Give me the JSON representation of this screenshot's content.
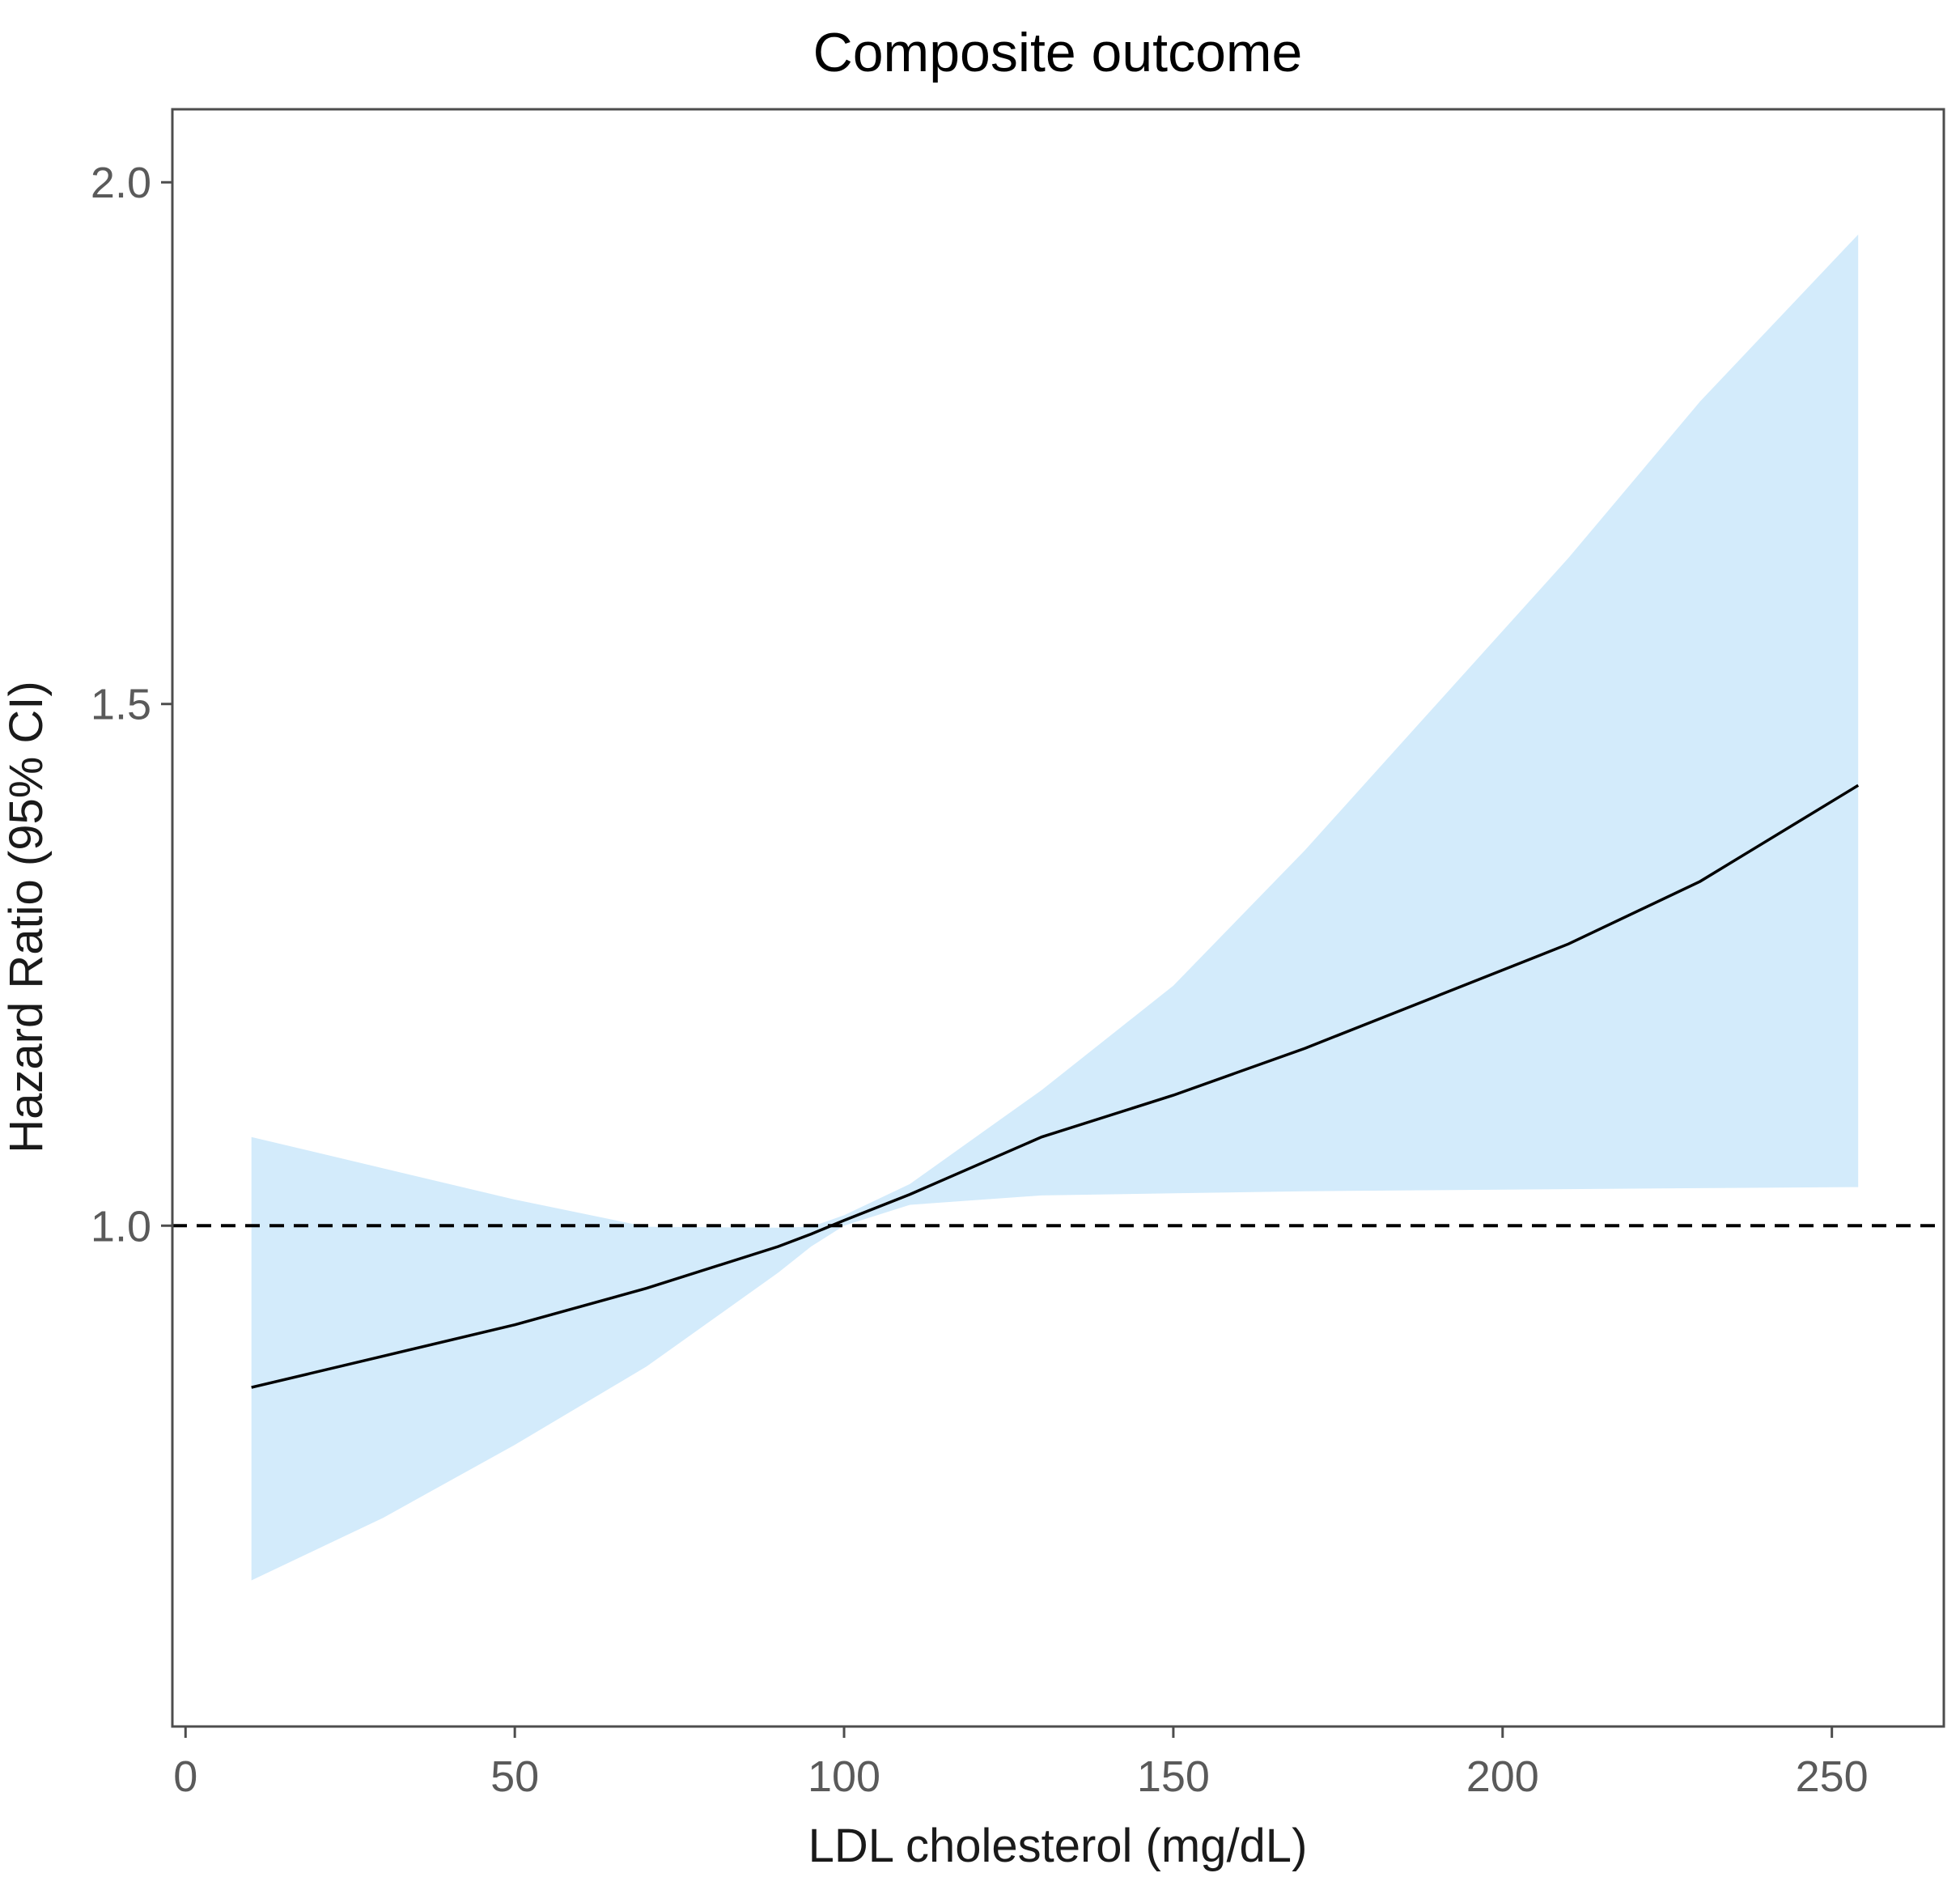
{
  "chart_data": {
    "type": "line",
    "title": "Composite outcome",
    "xlabel": "LDL cholesterol (mg/dL)",
    "ylabel": "Hazard Ratio (95% CI)",
    "xlim": [
      -2,
      267
    ],
    "ylim": [
      0.52,
      2.07
    ],
    "x_ticks": [
      0,
      50,
      100,
      150,
      200,
      250
    ],
    "y_ticks": [
      1.0,
      1.5,
      2.0
    ],
    "x_tick_labels": [
      "0",
      "50",
      "100",
      "150",
      "200",
      "250"
    ],
    "y_tick_labels": [
      "1.0",
      "1.5",
      "2.0"
    ],
    "reference_line": {
      "y": 1.0,
      "style": "dashed"
    },
    "grid": false,
    "legend": "none",
    "colors": {
      "ribbon": "#d3ebfb",
      "line": "#000000",
      "reference": "#000000",
      "panel_border": "#4d4d4d",
      "tick": "#4d4d4d"
    },
    "series": [
      {
        "x": [
          10,
          30,
          50,
          70,
          90,
          95,
          100,
          110,
          130,
          150,
          170,
          190,
          210,
          230,
          254
        ],
        "y": [
          0.845,
          0.875,
          0.905,
          0.94,
          0.98,
          0.992,
          1.005,
          1.03,
          1.085,
          1.125,
          1.17,
          1.22,
          1.27,
          1.33,
          1.422
        ],
        "lower": [
          0.66,
          0.72,
          0.79,
          0.865,
          0.955,
          0.98,
          1.0,
          1.02,
          1.029,
          1.031,
          1.033,
          1.034,
          1.035,
          1.036,
          1.037
        ],
        "upper": [
          1.085,
          1.055,
          1.025,
          0.999,
          0.998,
          0.999,
          1.01,
          1.04,
          1.13,
          1.23,
          1.36,
          1.5,
          1.64,
          1.79,
          1.95
        ]
      }
    ]
  }
}
